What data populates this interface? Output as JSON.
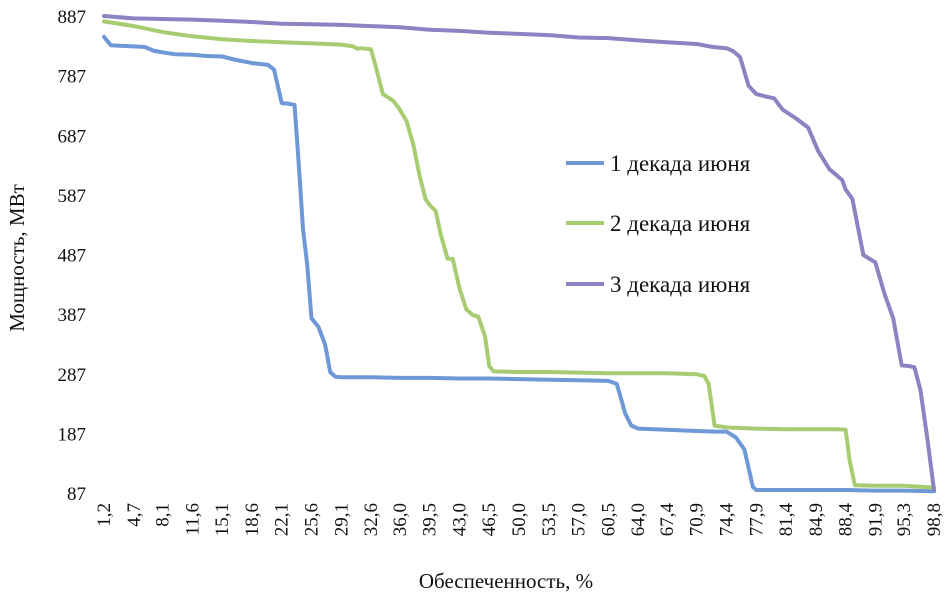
{
  "chart_data": {
    "type": "line",
    "xlabel": "Обеспеченность, %",
    "ylabel": "Мощность, МВт",
    "ylim": [
      87,
      887
    ],
    "yticks": [
      887,
      787,
      687,
      587,
      487,
      387,
      287,
      187,
      87
    ],
    "xlim": [
      1.2,
      98.8
    ],
    "xticks": [
      "1,2",
      "4,7",
      "8,1",
      "11,6",
      "15,1",
      "18,6",
      "22,1",
      "25,6",
      "29,1",
      "32,6",
      "36,0",
      "39,5",
      "43,0",
      "46,5",
      "50,0",
      "53,5",
      "57,0",
      "60,5",
      "64,0",
      "67,4",
      "70,9",
      "74,4",
      "77,9",
      "81,4",
      "84,9",
      "88,4",
      "91,9",
      "95,3",
      "98,8"
    ],
    "xtick_values": [
      1.2,
      4.7,
      8.1,
      11.6,
      15.1,
      18.6,
      22.1,
      25.6,
      29.1,
      32.6,
      36.0,
      39.5,
      43.0,
      46.5,
      50.0,
      53.5,
      57.0,
      60.5,
      64.0,
      67.4,
      70.9,
      74.4,
      77.9,
      81.4,
      84.9,
      88.4,
      91.9,
      95.3,
      98.8
    ],
    "grid": false,
    "legend_position": "right",
    "series": [
      {
        "name": "1 декада июня",
        "color": "#6f98d6",
        "x": [
          1.2,
          2.0,
          3.0,
          4.7,
          6.0,
          7.0,
          8.1,
          9.5,
          11.6,
          13.0,
          15.1,
          16.5,
          18.6,
          20.5,
          21.2,
          22.1,
          22.8,
          23.6,
          24.1,
          24.6,
          25.1,
          25.6,
          26.4,
          27.2,
          27.8,
          28.4,
          29.1,
          30.0,
          32.6,
          36.0,
          39.5,
          43.0,
          46.5,
          50.0,
          53.5,
          57.0,
          60.5,
          61.5,
          62.5,
          63.2,
          64.0,
          67.4,
          70.9,
          73.0,
          74.4,
          75.5,
          76.5,
          77.5,
          77.9,
          81.4,
          84.9,
          88.4,
          91.9,
          95.3,
          98.8
        ],
        "values": [
          852,
          838,
          837,
          836,
          835,
          829,
          826,
          823,
          822,
          820,
          819,
          814,
          808,
          805,
          797,
          741,
          740,
          738,
          640,
          530,
          470,
          380,
          366,
          336,
          290,
          282,
          281,
          281,
          281,
          280,
          280,
          279,
          279,
          278,
          277,
          276,
          275,
          270,
          220,
          200,
          195,
          193,
          191,
          190,
          190,
          180,
          160,
          97,
          92,
          92,
          92,
          92,
          91,
          91,
          90
        ]
      },
      {
        "name": "2 декада июня",
        "color": "#a8cc72",
        "x": [
          1.2,
          4.7,
          8.1,
          11.6,
          15.1,
          18.6,
          22.1,
          25.6,
          29.1,
          30.5,
          31.0,
          31.5,
          32.6,
          33.2,
          34.0,
          35.2,
          36.0,
          36.8,
          37.6,
          38.3,
          39.0,
          39.5,
          40.2,
          40.8,
          41.6,
          42.2,
          43.0,
          43.8,
          44.6,
          45.2,
          46.0,
          46.5,
          47.0,
          50.0,
          53.5,
          57.0,
          60.5,
          64.0,
          67.4,
          70.9,
          71.8,
          72.3,
          73.0,
          74.4,
          77.9,
          81.4,
          84.9,
          87.5,
          88.4,
          88.9,
          89.5,
          91.9,
          95.3,
          98.8
        ],
        "values": [
          878,
          870,
          860,
          853,
          848,
          845,
          843,
          841,
          839,
          836,
          832,
          833,
          831,
          800,
          756,
          745,
          730,
          710,
          670,
          620,
          580,
          570,
          560,
          520,
          480,
          480,
          430,
          395,
          385,
          383,
          350,
          300,
          291,
          290,
          290,
          289,
          288,
          288,
          288,
          286,
          283,
          270,
          200,
          197,
          195,
          194,
          194,
          194,
          193,
          140,
          100,
          99,
          99,
          96
        ]
      },
      {
        "name": "3 декада июня",
        "color": "#8b83c2",
        "x": [
          1.2,
          4.7,
          8.1,
          11.6,
          15.1,
          18.6,
          22.1,
          25.6,
          29.1,
          32.6,
          36.0,
          39.5,
          43.0,
          46.5,
          50.0,
          53.5,
          57.0,
          60.5,
          64.0,
          67.4,
          70.9,
          72.8,
          74.4,
          75.2,
          76.0,
          77.0,
          77.9,
          79.0,
          80.0,
          81.0,
          82.5,
          84.0,
          85.2,
          86.5,
          88.0,
          88.4,
          89.2,
          90.5,
          91.9,
          93.0,
          94.0,
          95.0,
          95.8,
          96.5,
          97.2,
          98.0,
          98.8
        ],
        "values": [
          887,
          883,
          882,
          881,
          879,
          877,
          874,
          873,
          872,
          870,
          868,
          864,
          862,
          859,
          857,
          855,
          851,
          850,
          846,
          843,
          840,
          835,
          833,
          828,
          818,
          770,
          756,
          752,
          749,
          730,
          716,
          700,
          660,
          630,
          612,
          596,
          580,
          486,
          474,
          420,
          380,
          301,
          300,
          298,
          260,
          180,
          92
        ]
      }
    ]
  }
}
